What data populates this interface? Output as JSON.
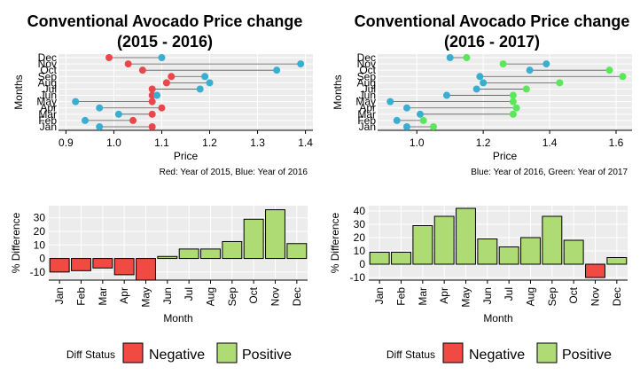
{
  "colors": {
    "red_dot": "#e8474c",
    "blue_dot": "#3aaed0",
    "green_dot": "#5ae85a",
    "negative": "#f04a43",
    "positive": "#aedb73",
    "grid": "#ffffff",
    "panel_bg": "#ececec"
  },
  "legend": {
    "title": "Diff Status",
    "negative": "Negative",
    "positive": "Positive"
  },
  "chart_data": [
    {
      "type": "dumbbell",
      "title": [
        "Conventional Avocado Price change",
        "(2015 - 2016)"
      ],
      "xlabel": "Price",
      "ylabel": "Months",
      "caption": "Red: Year of 2015, Blue: Year of 2016",
      "xlim": [
        0.89,
        1.41
      ],
      "xticks": [
        0.9,
        1.0,
        1.1,
        1.2,
        1.3,
        1.4
      ],
      "xtick_labels": [
        "0.9",
        "1.0",
        "1.1",
        "1.2",
        "1.3",
        "1.4"
      ],
      "categories": [
        "Jan",
        "Feb",
        "Mar",
        "Apr",
        "May",
        "Jun",
        "Jul",
        "Aug",
        "Sep",
        "Oct",
        "Nov",
        "Dec"
      ],
      "series": [
        {
          "name": "2015",
          "color": "red_dot",
          "values": [
            1.08,
            1.04,
            1.08,
            1.1,
            1.08,
            1.08,
            1.08,
            1.11,
            1.12,
            1.06,
            1.03,
            0.99
          ]
        },
        {
          "name": "2016",
          "color": "blue_dot",
          "values": [
            0.97,
            0.94,
            1.01,
            0.97,
            0.92,
            1.09,
            1.18,
            1.2,
            1.19,
            1.34,
            1.39,
            1.1
          ]
        }
      ]
    },
    {
      "type": "dumbbell",
      "title": [
        "Conventional Avocado Price change",
        "(2016 - 2017)"
      ],
      "xlabel": "Price",
      "ylabel": "Months",
      "caption": "Blue: Year of 2016, Green: Year of 2017",
      "xlim": [
        0.89,
        1.64
      ],
      "xticks": [
        1.0,
        1.2,
        1.4,
        1.6
      ],
      "xtick_labels": [
        "1.0",
        "1.2",
        "1.4",
        "1.6"
      ],
      "categories": [
        "Jan",
        "Feb",
        "Mar",
        "Apr",
        "May",
        "Jun",
        "Jul",
        "Aug",
        "Sep",
        "Oct",
        "Nov",
        "Dec"
      ],
      "series": [
        {
          "name": "2016",
          "color": "blue_dot",
          "values": [
            0.97,
            0.94,
            1.01,
            0.97,
            0.92,
            1.09,
            1.18,
            1.2,
            1.19,
            1.34,
            1.39,
            1.1
          ]
        },
        {
          "name": "2017",
          "color": "green_dot",
          "values": [
            1.05,
            1.02,
            1.29,
            1.3,
            1.29,
            1.29,
            1.33,
            1.43,
            1.62,
            1.58,
            1.26,
            1.15
          ]
        }
      ]
    },
    {
      "type": "bar",
      "xlabel": "Month",
      "ylabel": "% Difference",
      "ylim": [
        -16,
        39
      ],
      "yticks": [
        -10,
        0,
        10,
        20,
        30
      ],
      "ytick_labels": [
        "-10",
        "0",
        "10",
        "20",
        "30"
      ],
      "categories": [
        "Jan",
        "Feb",
        "Mar",
        "Apr",
        "May",
        "Jun",
        "Jul",
        "Aug",
        "Sep",
        "Oct",
        "Nov",
        "Dec"
      ],
      "values": [
        -10.0,
        -9.0,
        -7.0,
        -12.0,
        -16.0,
        1.5,
        7.0,
        7.0,
        12.5,
        29.0,
        36.0,
        11.0
      ]
    },
    {
      "type": "bar",
      "xlabel": "Month",
      "ylabel": "% Difference",
      "ylim": [
        -12,
        44
      ],
      "yticks": [
        -10,
        0,
        10,
        20,
        30,
        40
      ],
      "ytick_labels": [
        "-10",
        "0",
        "10",
        "20",
        "30",
        "40"
      ],
      "categories": [
        "Jan",
        "Feb",
        "Mar",
        "Apr",
        "May",
        "Jun",
        "Jul",
        "Aug",
        "Sep",
        "Oct",
        "Nov",
        "Dec"
      ],
      "values": [
        9.0,
        9.0,
        29.0,
        36.0,
        42.0,
        19.0,
        13.0,
        20.0,
        36.0,
        18.0,
        -10.0,
        5.0
      ]
    }
  ]
}
